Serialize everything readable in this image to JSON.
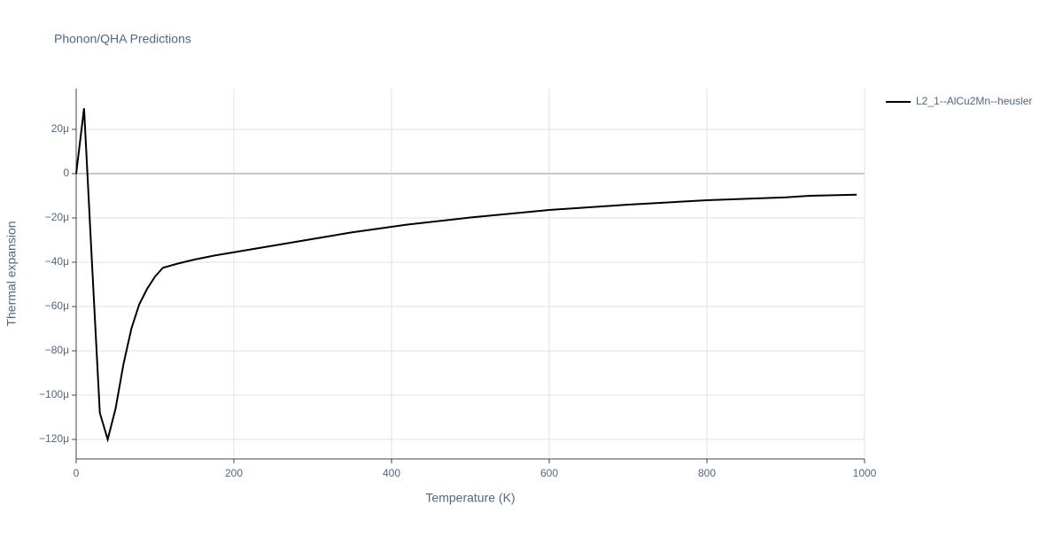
{
  "chart_data": {
    "type": "line",
    "title": "Phonon/QHA Predictions",
    "x_label": "Temperature (K)",
    "y_label": "Thermal expansion",
    "x": [
      0,
      10,
      20,
      30,
      40,
      50,
      60,
      70,
      80,
      90,
      100,
      110,
      130,
      150,
      175,
      200,
      250,
      300,
      350,
      400,
      420,
      500,
      600,
      700,
      800,
      900,
      930,
      990
    ],
    "series": [
      {
        "name": "L2_1--AlCu2Mn--heusler",
        "color": "#000000",
        "values": [
          0,
          2.95e-05,
          -4e-05,
          -0.000108,
          -0.00012,
          -0.000106,
          -8.6e-05,
          -7e-05,
          -5.9e-05,
          -5.2e-05,
          -4.65e-05,
          -4.25e-05,
          -4.05e-05,
          -3.88e-05,
          -3.7e-05,
          -3.55e-05,
          -3.25e-05,
          -2.95e-05,
          -2.65e-05,
          -2.4e-05,
          -2.3e-05,
          -1.98e-05,
          -1.64e-05,
          -1.4e-05,
          -1.2e-05,
          -1.07e-05,
          -1e-05,
          -9.5e-06
        ]
      }
    ],
    "xlim": [
      0,
      1000
    ],
    "xticks": [
      0,
      200,
      400,
      600,
      800,
      1000
    ],
    "ylim": [
      -0.0001288,
      3.84e-05
    ],
    "yticks": [
      {
        "value": -0.00012,
        "label": "−120μ"
      },
      {
        "value": -0.0001,
        "label": "−100μ"
      },
      {
        "value": -8e-05,
        "label": "−80μ"
      },
      {
        "value": -6e-05,
        "label": "−60μ"
      },
      {
        "value": -4e-05,
        "label": "−40μ"
      },
      {
        "value": -2e-05,
        "label": "−20μ"
      },
      0,
      {
        "value": 2e-05,
        "label": "20μ"
      }
    ],
    "grid": true
  }
}
